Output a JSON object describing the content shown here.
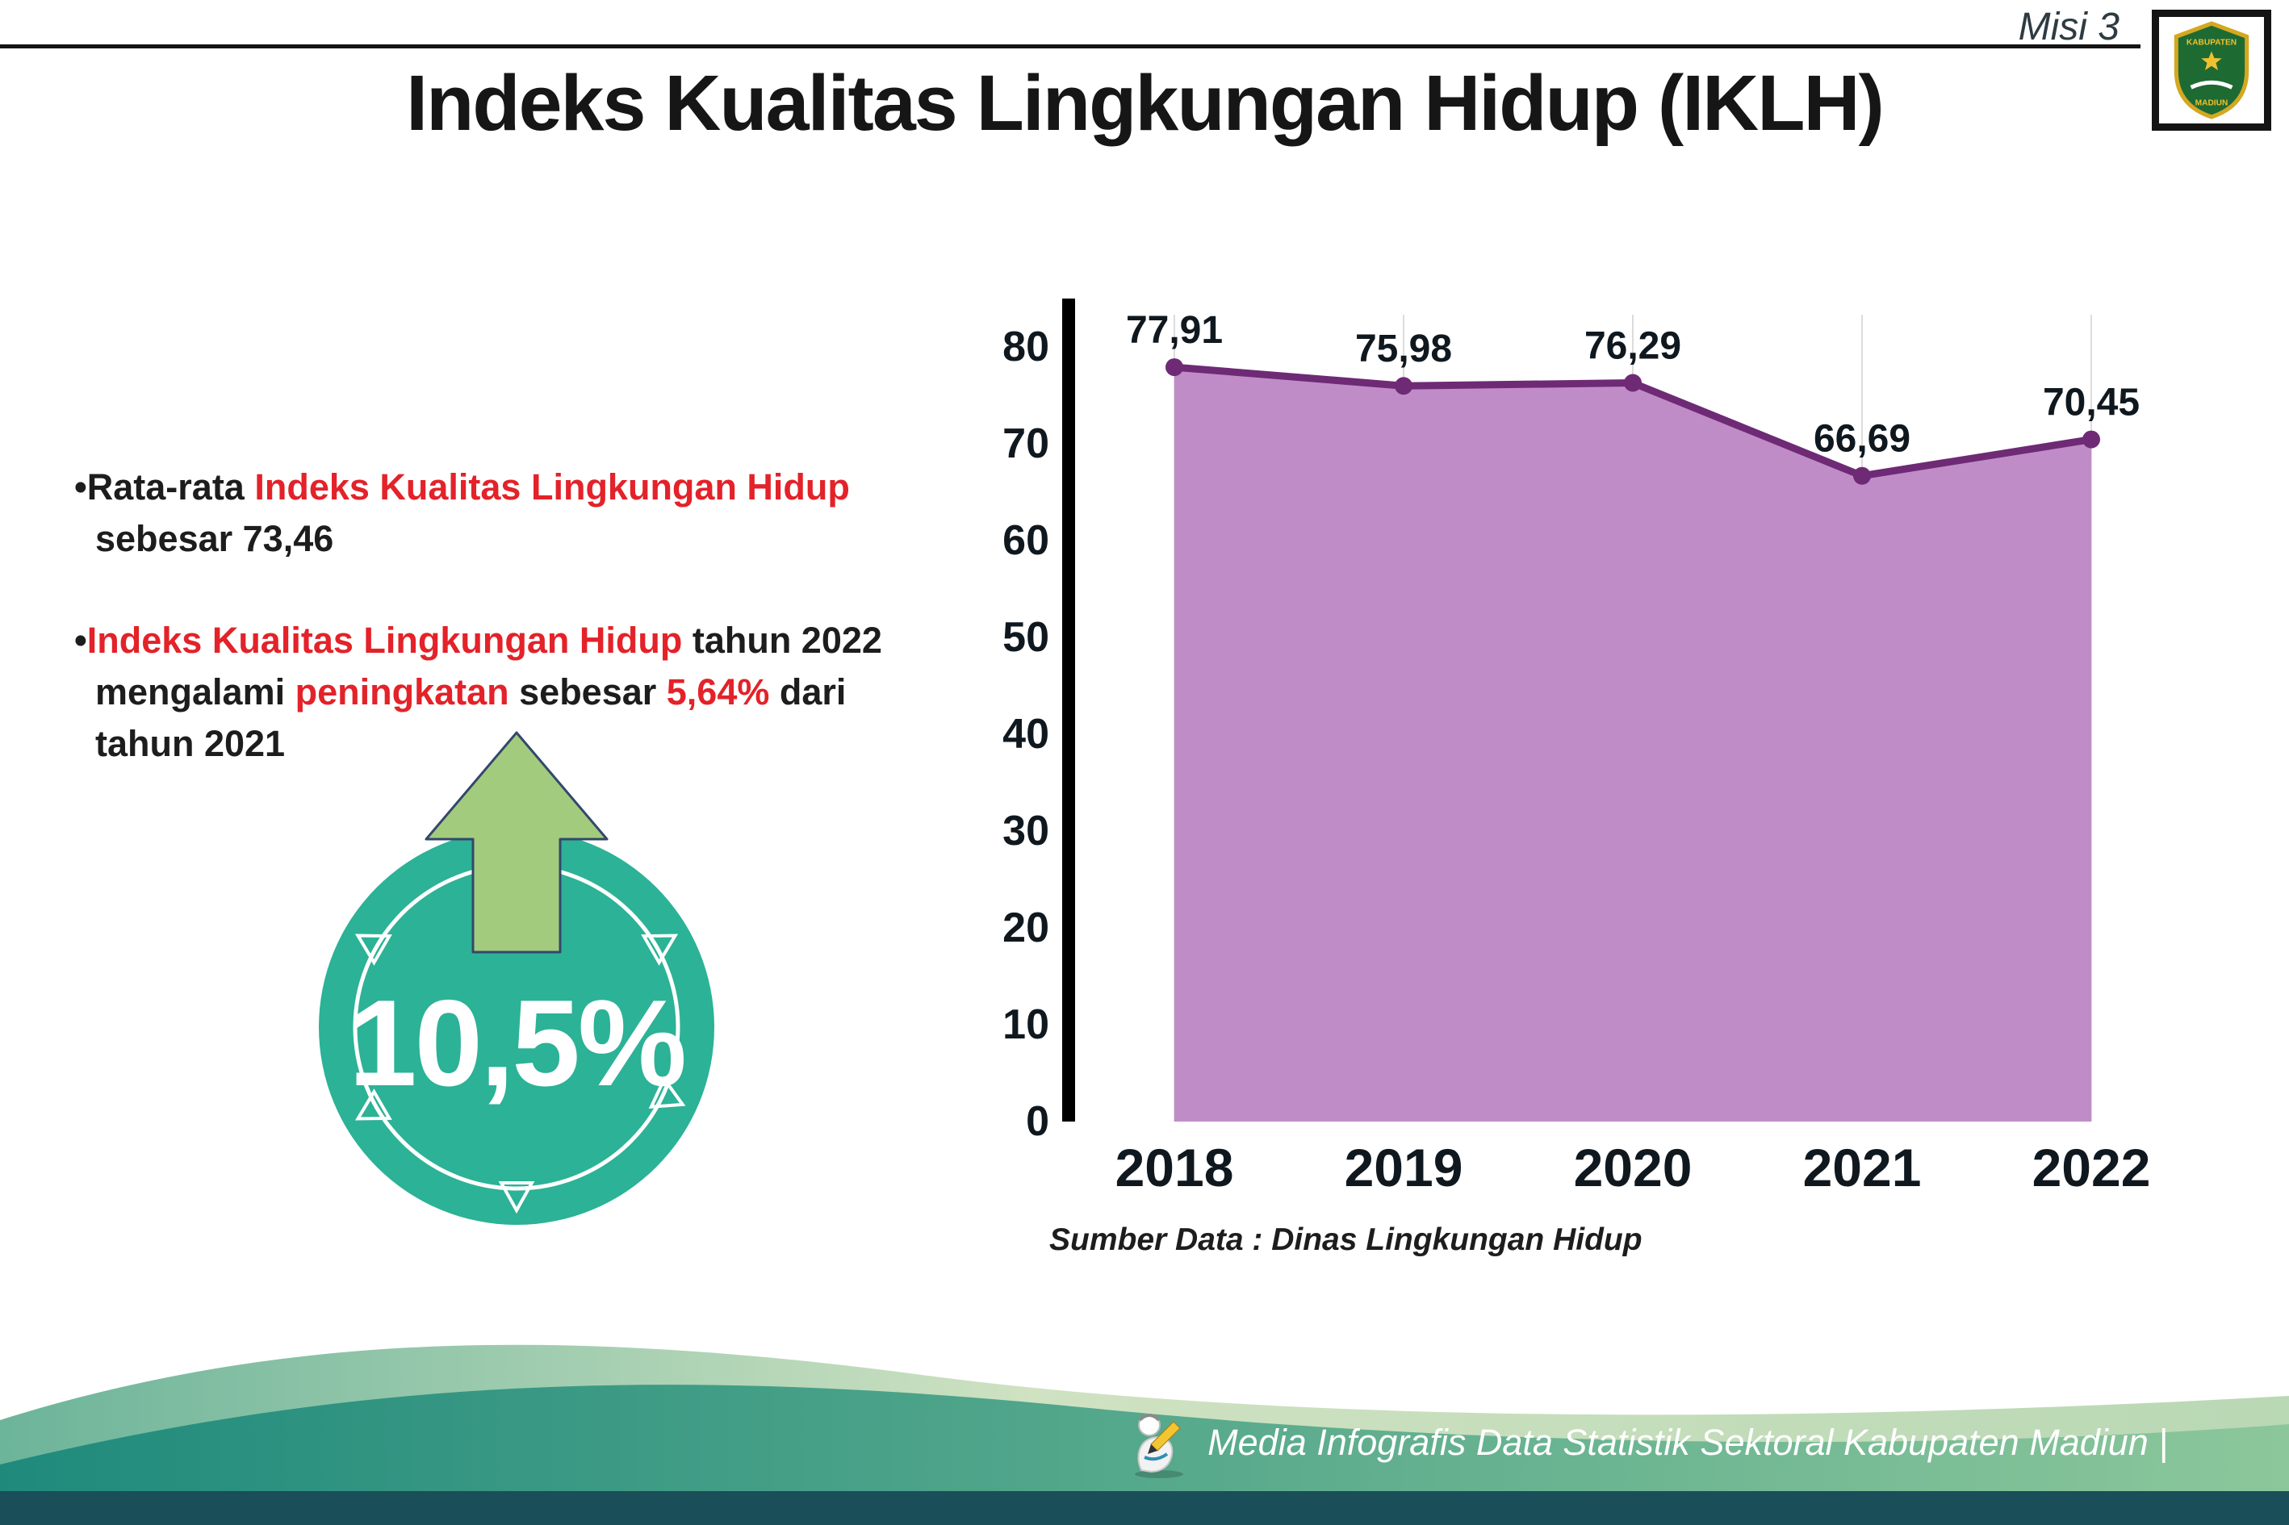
{
  "header": {
    "misi_label": "Misi 3",
    "title": "Indeks Kualitas Lingkungan Hidup (IKLH)",
    "logo": {
      "top_text": "KABUPATEN",
      "bottom_text": "MADIUN"
    }
  },
  "bullets": [
    {
      "marker": "•",
      "segments": [
        {
          "text": "Rata-rata "
        },
        {
          "text": "Indeks Kualitas Lingkungan Hidup",
          "red": true
        },
        {
          "text": " sebesar 73,46"
        }
      ]
    },
    {
      "marker": "•",
      "segments": [
        {
          "text": "Indeks Kualitas Lingkungan Hidup",
          "red": true
        },
        {
          "text": " tahun 2022 mengalami "
        },
        {
          "text": "peningkatan",
          "red": true
        },
        {
          "text": " sebesar "
        },
        {
          "text": "5,64%",
          "red": true
        },
        {
          "text": " dari tahun 2021"
        }
      ]
    }
  ],
  "badge": {
    "value": "10,5%"
  },
  "chart_data": {
    "type": "area",
    "title": "",
    "categories": [
      "2018",
      "2019",
      "2020",
      "2021",
      "2022"
    ],
    "values": [
      77.91,
      75.98,
      76.29,
      66.69,
      70.45
    ],
    "value_labels": [
      "77,91",
      "75,98",
      "76,29",
      "66,69",
      "70,45"
    ],
    "ylim": [
      0,
      80
    ],
    "ytick_step": 10,
    "grid": true,
    "legend": "none",
    "fill_color": "#c08cc8",
    "line_color": "#6e2a75",
    "source": "Sumber Data : Dinas Lingkungan Hidup"
  },
  "footer": {
    "credit": "Media Infografis Data Statistik Sektoral Kabupaten Madiun |"
  },
  "colors": {
    "accent_red": "#e32229",
    "badge_teal": "#2cb296",
    "arrow_green": "#a3cb7e",
    "chart_fill": "#c08cc8",
    "chart_line": "#6e2a75",
    "footer_dark_band": "#1a4e59"
  }
}
